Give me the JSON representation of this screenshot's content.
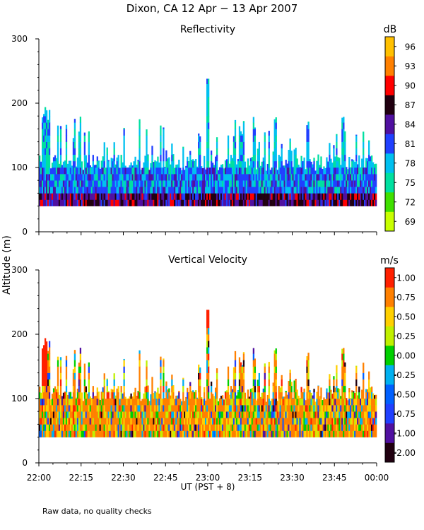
{
  "chart_data": [
    {
      "type": "heatmap",
      "title": "Reflectivity",
      "figure_title": "Dixon, CA 12 Apr − 13 Apr 2007",
      "ylabel": "Altitude (m)",
      "xlabel": "UT (PST + 8)",
      "x_ticks": [
        "22:00",
        "22:15",
        "22:30",
        "22:45",
        "23:00",
        "23:15",
        "23:30",
        "23:45",
        "00:00"
      ],
      "xlim_minutes": [
        0,
        120
      ],
      "ylim": [
        0,
        300
      ],
      "y_ticks": [
        0,
        100,
        200,
        300
      ],
      "colorbar_unit": "dB",
      "colorbar_labels": [
        "69",
        "72",
        "75",
        "78",
        "81",
        "84",
        "87",
        "90",
        "93",
        "96"
      ],
      "colorbar_values": [
        69,
        72,
        75,
        78,
        81,
        84,
        87,
        90,
        93,
        96
      ],
      "colors": [
        "#c8ff00",
        "#40e000",
        "#00e0a0",
        "#00c0f0",
        "#2040ff",
        "#5010a0",
        "#200010",
        "#ff0000",
        "#ff8000",
        "#ffc000"
      ],
      "data_range_altitude_m": [
        40,
        240
      ],
      "background_band_altitude_m": [
        40,
        120
      ]
    },
    {
      "type": "heatmap",
      "title": "Vertical Velocity",
      "ylabel": "Altitude (m)",
      "xlabel": "UT (PST + 8)",
      "x_ticks": [
        "22:00",
        "22:15",
        "22:30",
        "22:45",
        "23:00",
        "23:15",
        "23:30",
        "23:45",
        "00:00"
      ],
      "xlim_minutes": [
        0,
        120
      ],
      "ylim": [
        0,
        300
      ],
      "y_ticks": [
        0,
        100,
        200,
        300
      ],
      "colorbar_unit": "m/s",
      "colorbar_labels": [
        "-2.00",
        "-1.00",
        "-0.75",
        "-0.50",
        "-0.25",
        "0.00",
        "0.25",
        "0.50",
        "0.75",
        "1.00"
      ],
      "colorbar_values": [
        -2.0,
        -1.0,
        -0.75,
        -0.5,
        -0.25,
        0.0,
        0.25,
        0.5,
        0.75,
        1.0
      ],
      "colors": [
        "#200010",
        "#5010a0",
        "#2040ff",
        "#0060ff",
        "#00b0f0",
        "#00d000",
        "#c0f000",
        "#ffd000",
        "#ff8000",
        "#ff2000"
      ],
      "data_range_altitude_m": [
        40,
        240
      ],
      "background_band_altitude_m": [
        40,
        120
      ]
    }
  ],
  "footer_note": "Raw data, no quality checks"
}
